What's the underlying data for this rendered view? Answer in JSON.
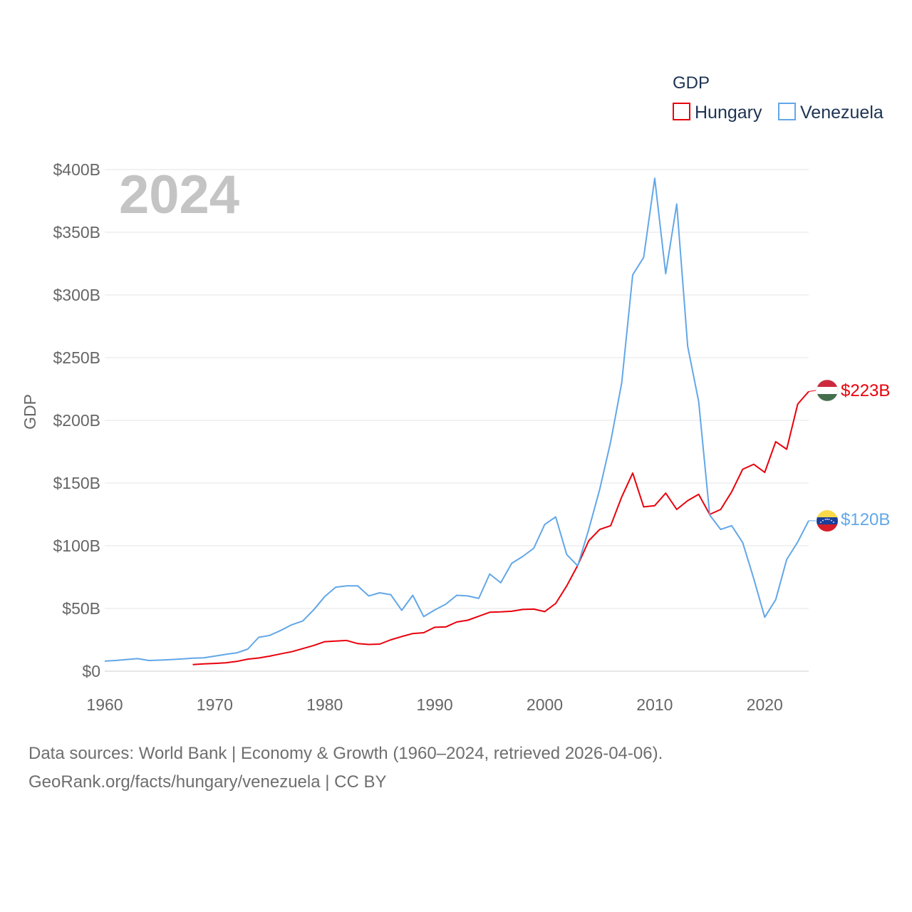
{
  "chart_data": {
    "type": "line",
    "year_label": "2024",
    "ylabel": "GDP",
    "xlabel": "",
    "xlim": [
      1960,
      2024
    ],
    "ylim": [
      0,
      400
    ],
    "x_ticks": [
      1960,
      1970,
      1980,
      1990,
      2000,
      2010,
      2020
    ],
    "y_ticks": [
      0,
      50,
      100,
      150,
      200,
      250,
      300,
      350,
      400
    ],
    "y_tick_labels": [
      "$0",
      "$50B",
      "$100B",
      "$150B",
      "$200B",
      "$250B",
      "$300B",
      "$350B",
      "$400B"
    ],
    "grid": true,
    "legend": {
      "title": "GDP",
      "placement": "top-right"
    },
    "series": [
      {
        "name": "Hungary",
        "color": "#e8000b",
        "end_label": "$223B",
        "flag": "hungary-flag",
        "x": [
          1968,
          1969,
          1970,
          1971,
          1972,
          1973,
          1974,
          1975,
          1976,
          1977,
          1978,
          1979,
          1980,
          1981,
          1982,
          1983,
          1984,
          1985,
          1986,
          1987,
          1988,
          1989,
          1990,
          1991,
          1992,
          1993,
          1994,
          1995,
          1996,
          1997,
          1998,
          1999,
          2000,
          2001,
          2002,
          2003,
          2004,
          2005,
          2006,
          2007,
          2008,
          2009,
          2010,
          2011,
          2012,
          2013,
          2014,
          2015,
          2016,
          2017,
          2018,
          2019,
          2020,
          2021,
          2022,
          2023,
          2024
        ],
        "values": [
          5.3,
          5.8,
          6.2,
          6.7,
          7.8,
          9.6,
          10.5,
          12.0,
          13.8,
          15.5,
          18.0,
          20.5,
          23.5,
          24.0,
          24.5,
          22.0,
          21.3,
          21.6,
          25.0,
          27.6,
          30.0,
          30.7,
          35.0,
          35.3,
          39.2,
          40.6,
          43.8,
          47.0,
          47.3,
          47.8,
          49.2,
          49.5,
          47.5,
          54.0,
          68.0,
          84.4,
          104.0,
          113.0,
          116.0,
          139.0,
          158.0,
          131.0,
          132.0,
          142.0,
          129.0,
          136.0,
          141.0,
          125.0,
          129.0,
          143.0,
          161.0,
          165.0,
          158.5,
          183.0,
          177.0,
          213.0,
          223.0
        ]
      },
      {
        "name": "Venezuela",
        "color": "#62a7e8",
        "end_label": "$120B",
        "flag": "venezuela-flag",
        "x": [
          1960,
          1961,
          1962,
          1963,
          1964,
          1965,
          1966,
          1967,
          1968,
          1969,
          1970,
          1971,
          1972,
          1973,
          1974,
          1975,
          1976,
          1977,
          1978,
          1979,
          1980,
          1981,
          1982,
          1983,
          1984,
          1985,
          1986,
          1987,
          1988,
          1989,
          1990,
          1991,
          1992,
          1993,
          1994,
          1995,
          1996,
          1997,
          1998,
          1999,
          2000,
          2001,
          2002,
          2003,
          2004,
          2005,
          2006,
          2007,
          2008,
          2009,
          2010,
          2011,
          2012,
          2013,
          2014,
          2015,
          2016,
          2017,
          2018,
          2019,
          2020,
          2021,
          2022,
          2023,
          2024
        ],
        "values": [
          8.0,
          8.5,
          9.3,
          10.0,
          8.5,
          8.8,
          9.2,
          9.7,
          10.4,
          10.7,
          12.0,
          13.4,
          14.6,
          17.6,
          27.0,
          28.5,
          32.5,
          37.0,
          40.0,
          49.0,
          59.5,
          67.0,
          68.0,
          68.0,
          60.0,
          62.5,
          61.0,
          48.5,
          60.5,
          43.5,
          48.8,
          53.4,
          60.5,
          60.0,
          58.0,
          77.5,
          70.5,
          86.0,
          91.5,
          98.0,
          117.0,
          123.0,
          93.0,
          84.0,
          113.0,
          145.0,
          183.0,
          230.0,
          316.0,
          330.0,
          393.0,
          317.0,
          372.5,
          259.0,
          215.0,
          124.5,
          113.0,
          116.0,
          102.5,
          74.0,
          43.0,
          57.0,
          89.0,
          103.0,
          120.0
        ]
      }
    ]
  },
  "source": {
    "line1": "Data sources: World Bank | Economy & Growth (1960–2024, retrieved 2026-04-06).",
    "line2": "GeoRank.org/facts/hungary/venezuela | CC BY"
  }
}
